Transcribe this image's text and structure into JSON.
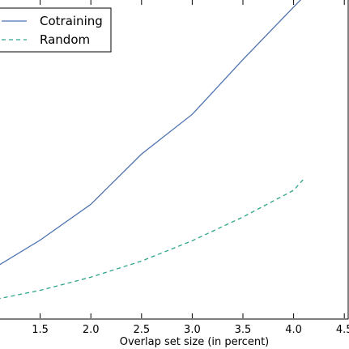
{
  "chart_data": {
    "type": "line",
    "xlabel": "Overlap set size (in percent)",
    "ylabel": "",
    "title": "",
    "xlim": [
      1.0,
      4.1
    ],
    "ylim": [
      0.0,
      1.0
    ],
    "grid": false,
    "legend_position": "top-left",
    "x_ticks": [
      "1.5",
      "2.0",
      "2.5",
      "3.0",
      "3.5",
      "4.0",
      "4.5"
    ],
    "x_tick_values": [
      1.5,
      2.0,
      2.5,
      3.0,
      3.5,
      4.0,
      4.5
    ],
    "series": [
      {
        "name": "Cotraining",
        "color": "#4c72b0",
        "dash": "solid",
        "x": [
          1.0,
          1.5,
          2.0,
          2.5,
          3.0,
          3.5,
          4.0,
          4.1
        ],
        "y": [
          0.148,
          0.249,
          0.367,
          0.532,
          0.663,
          0.843,
          1.016,
          1.05
        ]
      },
      {
        "name": "Random",
        "color": "#2ca58a",
        "dash": "dashed",
        "x": [
          1.0,
          1.5,
          2.0,
          2.5,
          3.0,
          3.5,
          4.0,
          4.1
        ],
        "y": [
          0.05,
          0.084,
          0.127,
          0.18,
          0.247,
          0.325,
          0.413,
          0.45
        ]
      }
    ]
  }
}
